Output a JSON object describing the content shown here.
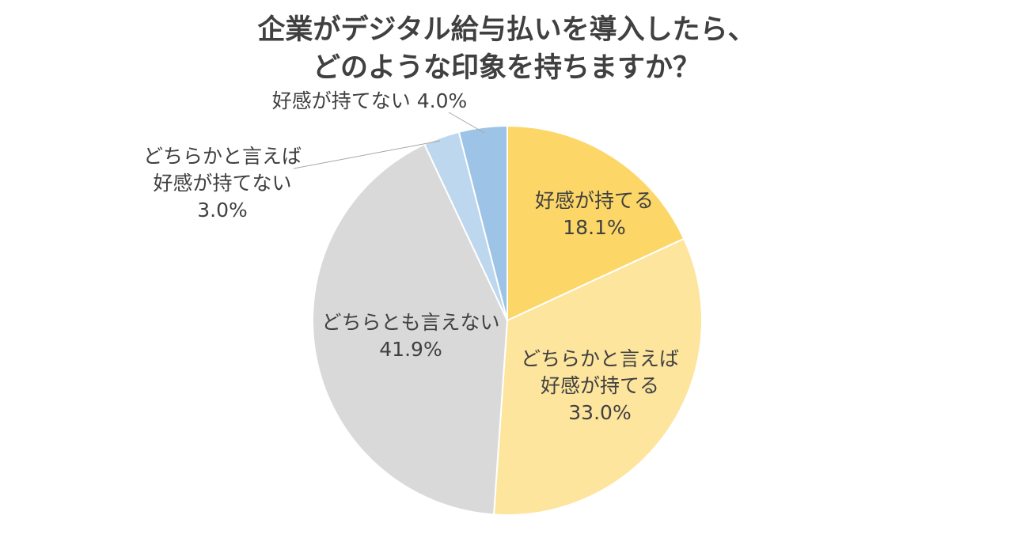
{
  "chart_data": {
    "type": "pie",
    "title_lines": [
      "企業がデジタル給与払いを導入したら、",
      "どのような印象を持ちますか？"
    ],
    "slices": [
      {
        "label_lines": [
          "好感が持てる"
        ],
        "value": 18.1,
        "value_label": "18.1%",
        "color": "#FCD667"
      },
      {
        "label_lines": [
          "どちらかと言えば",
          "好感が持てる"
        ],
        "value": 33.0,
        "value_label": "33.0%",
        "color": "#FDE59E"
      },
      {
        "label_lines": [
          "どちらとも言えない"
        ],
        "value": 41.9,
        "value_label": "41.9%",
        "color": "#D9D9D9"
      },
      {
        "label_lines": [
          "どちらかと言えば",
          "好感が持てない"
        ],
        "value": 3.0,
        "value_label": "3.0%",
        "color": "#BDD7EE"
      },
      {
        "label_lines": [
          "好感が持てない"
        ],
        "value": 4.0,
        "value_label": "4.0%",
        "color": "#9DC3E6"
      }
    ],
    "start": "12 o'clock",
    "direction": "clockwise",
    "legend": "none"
  }
}
